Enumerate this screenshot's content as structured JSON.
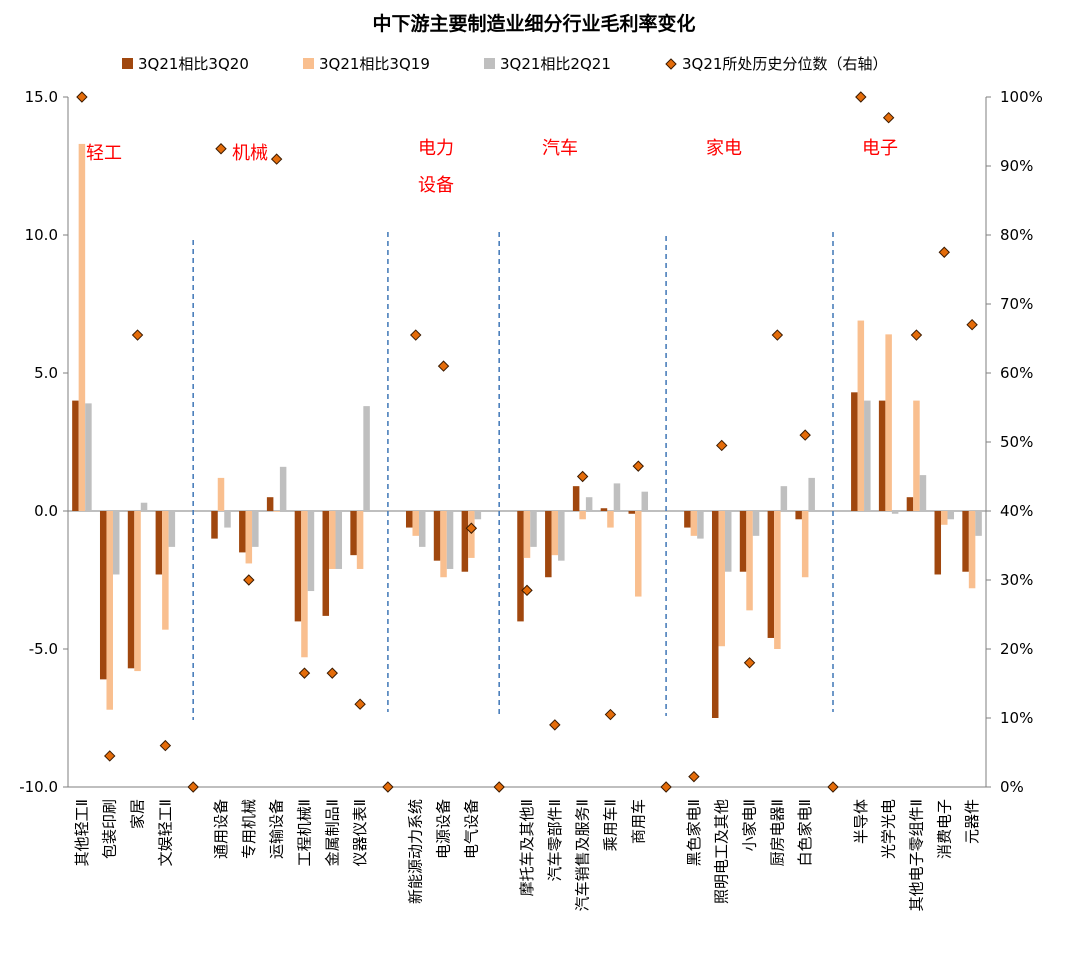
{
  "chart_data": {
    "type": "bar",
    "title": "中下游主要制造业细分行业毛利率变化",
    "legend": [
      {
        "name": "3Q21相比3Q20",
        "color": "#a0470e",
        "shape": "square"
      },
      {
        "name": "3Q21相比3Q19",
        "color": "#f9bf8f",
        "shape": "square"
      },
      {
        "name": "3Q21相比2Q21",
        "color": "#bfbfbf",
        "shape": "square"
      },
      {
        "name": "3Q21所处历史分位数（右轴）",
        "color": "#e46c0a",
        "shape": "diamond"
      }
    ],
    "ylim_left": [
      -10,
      15
    ],
    "yticks_left": [
      "15.0",
      "10.0",
      "5.0",
      "0.0",
      "-5.0",
      "-10.0"
    ],
    "ylim_right": [
      0,
      100
    ],
    "yticks_right": [
      "100%",
      "90%",
      "80%",
      "70%",
      "60%",
      "50%",
      "40%",
      "30%",
      "20%",
      "10%",
      "0%"
    ],
    "groups": [
      {
        "label": "轻工",
        "label2": ""
      },
      {
        "label": "机械",
        "label2": ""
      },
      {
        "label": "电力",
        "label2": "设备"
      },
      {
        "label": "汽车",
        "label2": ""
      },
      {
        "label": "家电",
        "label2": ""
      },
      {
        "label": "电子",
        "label2": ""
      }
    ],
    "categories": [
      "其他轻工Ⅱ",
      "包装印刷",
      "家居",
      "文娱轻工Ⅱ",
      "",
      "通用设备",
      "专用机械",
      "运输设备",
      "工程机械Ⅱ",
      "金属制品Ⅱ",
      "仪器仪表Ⅱ",
      "",
      "新能源动力系统",
      "电源设备",
      "电气设备",
      "",
      "摩托车及其他Ⅱ",
      "汽车零部件Ⅱ",
      "汽车销售及服务Ⅱ",
      "乘用车Ⅱ",
      "商用车",
      "",
      "黑色家电Ⅱ",
      "照明电工及其他",
      "小家电Ⅱ",
      "厨房电器Ⅱ",
      "白色家电Ⅱ",
      "",
      "半导体",
      "光学光电",
      "其他电子零组件Ⅱ",
      "消费电子",
      "元器件"
    ],
    "series": [
      {
        "name": "3Q21相比3Q20",
        "values": [
          4.0,
          -6.1,
          -5.7,
          -2.3,
          null,
          -1.0,
          -1.5,
          0.5,
          -4.0,
          -3.8,
          -1.6,
          null,
          -0.6,
          -1.8,
          -2.2,
          null,
          -4.0,
          -2.4,
          0.9,
          0.1,
          -0.1,
          null,
          -0.6,
          -7.5,
          -2.2,
          -4.6,
          -0.3,
          null,
          4.3,
          4.0,
          0.5,
          -2.3,
          -2.2
        ]
      },
      {
        "name": "3Q21相比3Q19",
        "values": [
          13.3,
          -7.2,
          -5.8,
          -4.3,
          null,
          1.2,
          -1.9,
          0.0,
          -5.3,
          -2.1,
          -2.1,
          null,
          -0.9,
          -2.4,
          -1.7,
          null,
          -1.7,
          -1.6,
          -0.3,
          -0.6,
          -3.1,
          null,
          -0.9,
          -4.9,
          -3.6,
          -5.0,
          -2.4,
          null,
          6.9,
          6.4,
          4.0,
          -0.5,
          -2.8
        ]
      },
      {
        "name": "3Q21相比2Q21",
        "values": [
          3.9,
          -2.3,
          0.3,
          -1.3,
          null,
          -0.6,
          -1.3,
          1.6,
          -2.9,
          -2.1,
          3.8,
          null,
          -1.3,
          -2.1,
          -0.3,
          null,
          -1.3,
          -1.8,
          0.5,
          1.0,
          0.7,
          null,
          -1.0,
          -2.2,
          -0.9,
          0.9,
          1.2,
          null,
          4.0,
          -0.1,
          1.3,
          -0.3,
          -0.9
        ]
      },
      {
        "name": "3Q21所处历史分位数（右轴）",
        "values": [
          100,
          4.5,
          65.5,
          6,
          0,
          92.5,
          30,
          91,
          16.5,
          16.5,
          12,
          0,
          65.5,
          61,
          37.5,
          0,
          28.5,
          9,
          45,
          10.5,
          46.5,
          0,
          1.5,
          49.5,
          18,
          65.5,
          51,
          0,
          100,
          97,
          65.5,
          77.5,
          67
        ]
      }
    ]
  }
}
